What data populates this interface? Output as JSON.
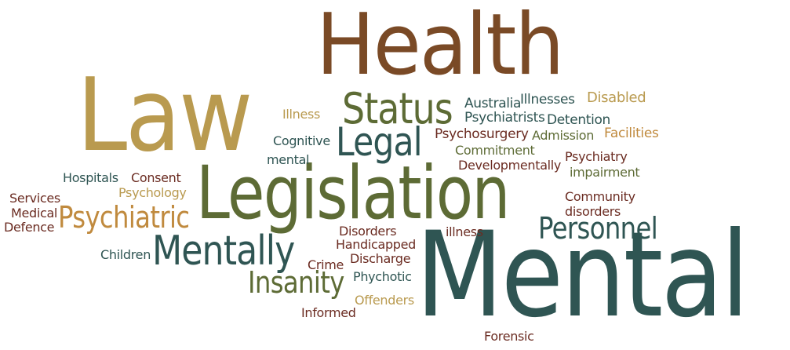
{
  "colors": {
    "brown": "#7a4a26",
    "gold": "#b99a4f",
    "olive": "#5d6b35",
    "teal": "#2f5553",
    "maroon": "#6b2c22",
    "tan": "#c08a3e"
  },
  "words": {
    "health": "Health",
    "law": "Law",
    "mental_large": "Mental",
    "legislation": "Legislation",
    "status": "Status",
    "legal": "Legal",
    "mentally": "Mentally",
    "psychiatric": "Psychiatric",
    "personnel": "Personnel",
    "insanity": "Insanity",
    "australia": "Australia",
    "illnesses": "Illnesses",
    "disabled": "Disabled",
    "psychiatrists": "Psychiatrists",
    "detention": "Detention",
    "illness_top": "Illness",
    "cognitive": "Cognitive",
    "mental_small": "mental",
    "psychosurgery": "Psychosurgery",
    "admission": "Admission",
    "facilities": "Facilities",
    "commitment": "Commitment",
    "developmentally": "Developmentally",
    "psychiatry": "Psychiatry",
    "impairment": "impairment",
    "hospitals": "Hospitals",
    "consent": "Consent",
    "psychology": "Psychology",
    "services": "Services",
    "medical": "Medical",
    "defence": "Defence",
    "community": "Community",
    "disorders_lower": "disorders",
    "children": "Children",
    "disorders_cap": "Disorders",
    "handicapped": "Handicapped",
    "illness_mid": "illness",
    "crime": "Crime",
    "discharge": "Discharge",
    "phychotic": "Phychotic",
    "offenders": "Offenders",
    "informed": "Informed",
    "forensic": "Forensic"
  }
}
